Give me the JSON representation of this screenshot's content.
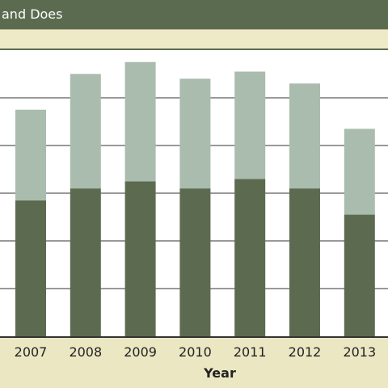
{
  "title": "and Does",
  "colors": {
    "header": "#5b6b50",
    "background": "#ebe7c3",
    "series_dark": "#5c6b50",
    "series_light": "#a9bcad"
  },
  "chart_data": {
    "type": "bar",
    "stacked": true,
    "title": "and Does",
    "categories": [
      "2007",
      "2008",
      "2009",
      "2010",
      "2011",
      "2012",
      "2013"
    ],
    "series": [
      {
        "values": [
          57,
          62,
          65,
          62,
          66,
          62,
          51
        ]
      },
      {
        "values": [
          38,
          48,
          50,
          46,
          45,
          44,
          36
        ]
      }
    ],
    "xlabel": "Year",
    "ylabel": "",
    "ylim": [
      0,
      120
    ],
    "grid": true
  }
}
